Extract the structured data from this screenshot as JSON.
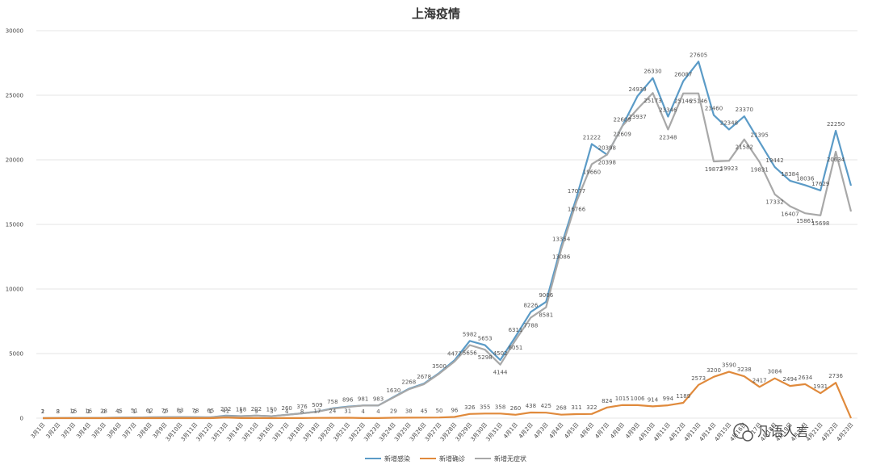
{
  "chart_data": {
    "type": "line",
    "title": "上海疫情",
    "xlabel": "",
    "ylabel": "",
    "yticks": [
      "0",
      "5000",
      "10000",
      "15000",
      "20000",
      "25000",
      "30000"
    ],
    "ylim": [
      0,
      30000
    ],
    "grid": true,
    "legend_position": "bottom",
    "categories": [
      "3月1日",
      "3月2日",
      "3月3日",
      "3月4日",
      "3月5日",
      "3月6日",
      "3月7日",
      "3月8日",
      "3月9日",
      "3月10日",
      "3月11日",
      "3月12日",
      "3月13日",
      "3月14日",
      "3月15日",
      "3月16日",
      "3月17日",
      "3月18日",
      "3月19日",
      "3月20日",
      "3月21日",
      "3月22日",
      "3月23日",
      "3月24日",
      "3月25日",
      "3月26日",
      "3月27日",
      "3月28日",
      "3月29日",
      "3月30日",
      "3月31日",
      "4月1日",
      "4月2日",
      "4月3日",
      "4月4日",
      "4月5日",
      "4月6日",
      "4月7日",
      "4月8日",
      "4月9日",
      "4月10日",
      "4月11日",
      "4月12日",
      "4月13日",
      "4月14日",
      "4月15日",
      "4月16日",
      "4月17日",
      "4月18日",
      "4月19日",
      "4月20日",
      "4月21日",
      "4月22日",
      "4月23日"
    ],
    "series": [
      {
        "name": "新增感染",
        "color": "#5b9bc7",
        "values": [
          2,
          8,
          16,
          16,
          28,
          45,
          51,
          62,
          76,
          83,
          78,
          65,
          202,
          158,
          202,
          150,
          260,
          376,
          509,
          758,
          896,
          981,
          983,
          1630,
          2268,
          2678,
          3500,
          4477,
          5982,
          5653,
          4502,
          6311,
          8226,
          9006,
          13354,
          17077,
          21222,
          20398,
          22609,
          24939,
          26330,
          23346,
          26087,
          27605,
          23460,
          22348,
          23370,
          21395,
          19442,
          18384,
          18036,
          17629,
          22250,
          18000
        ]
      },
      {
        "name": "新增确诊",
        "color": "#e08a3c",
        "values": [
          1,
          3,
          2,
          1,
          0,
          0,
          1,
          1,
          2,
          3,
          3,
          1,
          41,
          5,
          9,
          3,
          4,
          8,
          17,
          24,
          31,
          4,
          4,
          29,
          38,
          45,
          50,
          96,
          326,
          355,
          358,
          260,
          438,
          425,
          268,
          311,
          322,
          824,
          1015,
          1006,
          914,
          994,
          1189,
          2573,
          3200,
          3590,
          3238,
          2417,
          3084,
          2494,
          2634,
          1931,
          2736,
          0
        ]
      },
      {
        "name": "新增无症状",
        "color": "#a8a8a8",
        "values": [
          1,
          5,
          14,
          15,
          28,
          45,
          50,
          61,
          74,
          80,
          75,
          64,
          161,
          153,
          193,
          147,
          256,
          368,
          492,
          734,
          865,
          977,
          979,
          1601,
          2230,
          2633,
          3450,
          4381,
          5656,
          5298,
          4144,
          6051,
          7788,
          8581,
          13086,
          16766,
          19660,
          20398,
          22609,
          23937,
          25173,
          22348,
          25146,
          25146,
          19872,
          19923,
          21582,
          19831,
          17332,
          16407,
          15861,
          15698,
          20634,
          16000
        ]
      }
    ],
    "data_labels": {
      "新增感染": [
        "2",
        "8",
        "16",
        "16",
        "28",
        "45",
        "51",
        "62",
        "76",
        "83",
        "78",
        "65",
        "202",
        "158",
        "202",
        "150",
        "260",
        "376",
        "509",
        "758",
        "896",
        "981",
        "983",
        "1630",
        "2268",
        "2678",
        "3500",
        "4477",
        "5982",
        "5653",
        "4502",
        "6311",
        "8226",
        "9006",
        "13354",
        "17077",
        "21222",
        "20398",
        "22609",
        "24939",
        "26330",
        "23346",
        "26087",
        "27605",
        "23460",
        "22348",
        "23370",
        "21395",
        "19442",
        "18384",
        "18036",
        "17629",
        "22250",
        ""
      ],
      "新增确诊": [
        "1",
        "3",
        "2",
        "1",
        "0",
        "0",
        "1",
        "1",
        "2",
        "3",
        "3",
        "1",
        "41",
        "5",
        "9",
        "3",
        "4",
        "8",
        "17",
        "24",
        "31",
        "4",
        "4",
        "29",
        "38",
        "45",
        "50",
        "96",
        "326",
        "355",
        "358",
        "260",
        "438",
        "425",
        "268",
        "311",
        "322",
        "824",
        "1015",
        "1006",
        "914",
        "994",
        "1189",
        "2573",
        "3200",
        "3590",
        "3238",
        "2417",
        "3084",
        "2494",
        "2634",
        "1931",
        "2736",
        ""
      ],
      "新增无症状": [
        "",
        "",
        "",
        "",
        "",
        "",
        "",
        "",
        "",
        "",
        "",
        "",
        "",
        "",
        "",
        "",
        "",
        "",
        "",
        "",
        "",
        "",
        "",
        "",
        "",
        "",
        "",
        "",
        "5656",
        "5298",
        "4144",
        "6051",
        "7788",
        "8581",
        "13086",
        "16766",
        "19660",
        "20398",
        "22609",
        "23937",
        "25173",
        "22348",
        "25146",
        "25146",
        "19872",
        "19923",
        "21582",
        "19831",
        "17332",
        "16407",
        "15861",
        "15698",
        "20634",
        ""
      ]
    },
    "watermark": "凡语人言"
  }
}
